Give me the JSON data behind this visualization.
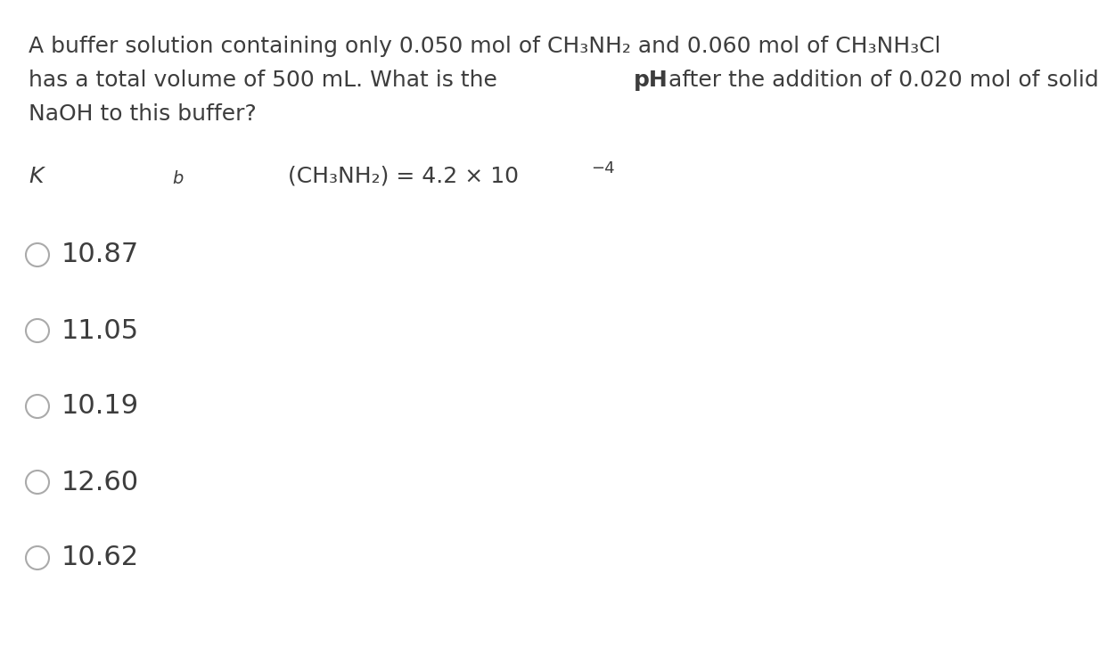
{
  "bg_color": "#ffffff",
  "text_color": "#3d3d3d",
  "q_line1": "A buffer solution containing only 0.050 mol of CH₃NH₂ and 0.060 mol of CH₃NH₃Cl",
  "q_line2a": "has a total volume of 500 mL. What is the ",
  "q_line2b": "pH",
  "q_line2c": " after the addition of 0.020 mol of solid",
  "q_line3": "NaOH to this buffer?",
  "kb_part1": "K",
  "kb_part2": "b",
  "kb_part3": " (CH₃NH₂) = 4.2 × 10",
  "kb_exp": "−4",
  "options": [
    "10.87",
    "11.05",
    "10.19",
    "12.60",
    "10.62"
  ],
  "font_size_question": 18,
  "font_size_kb": 18,
  "font_size_options": 22,
  "font_size_exp": 13,
  "circle_color": "#aaaaaa",
  "circle_lw": 1.5
}
